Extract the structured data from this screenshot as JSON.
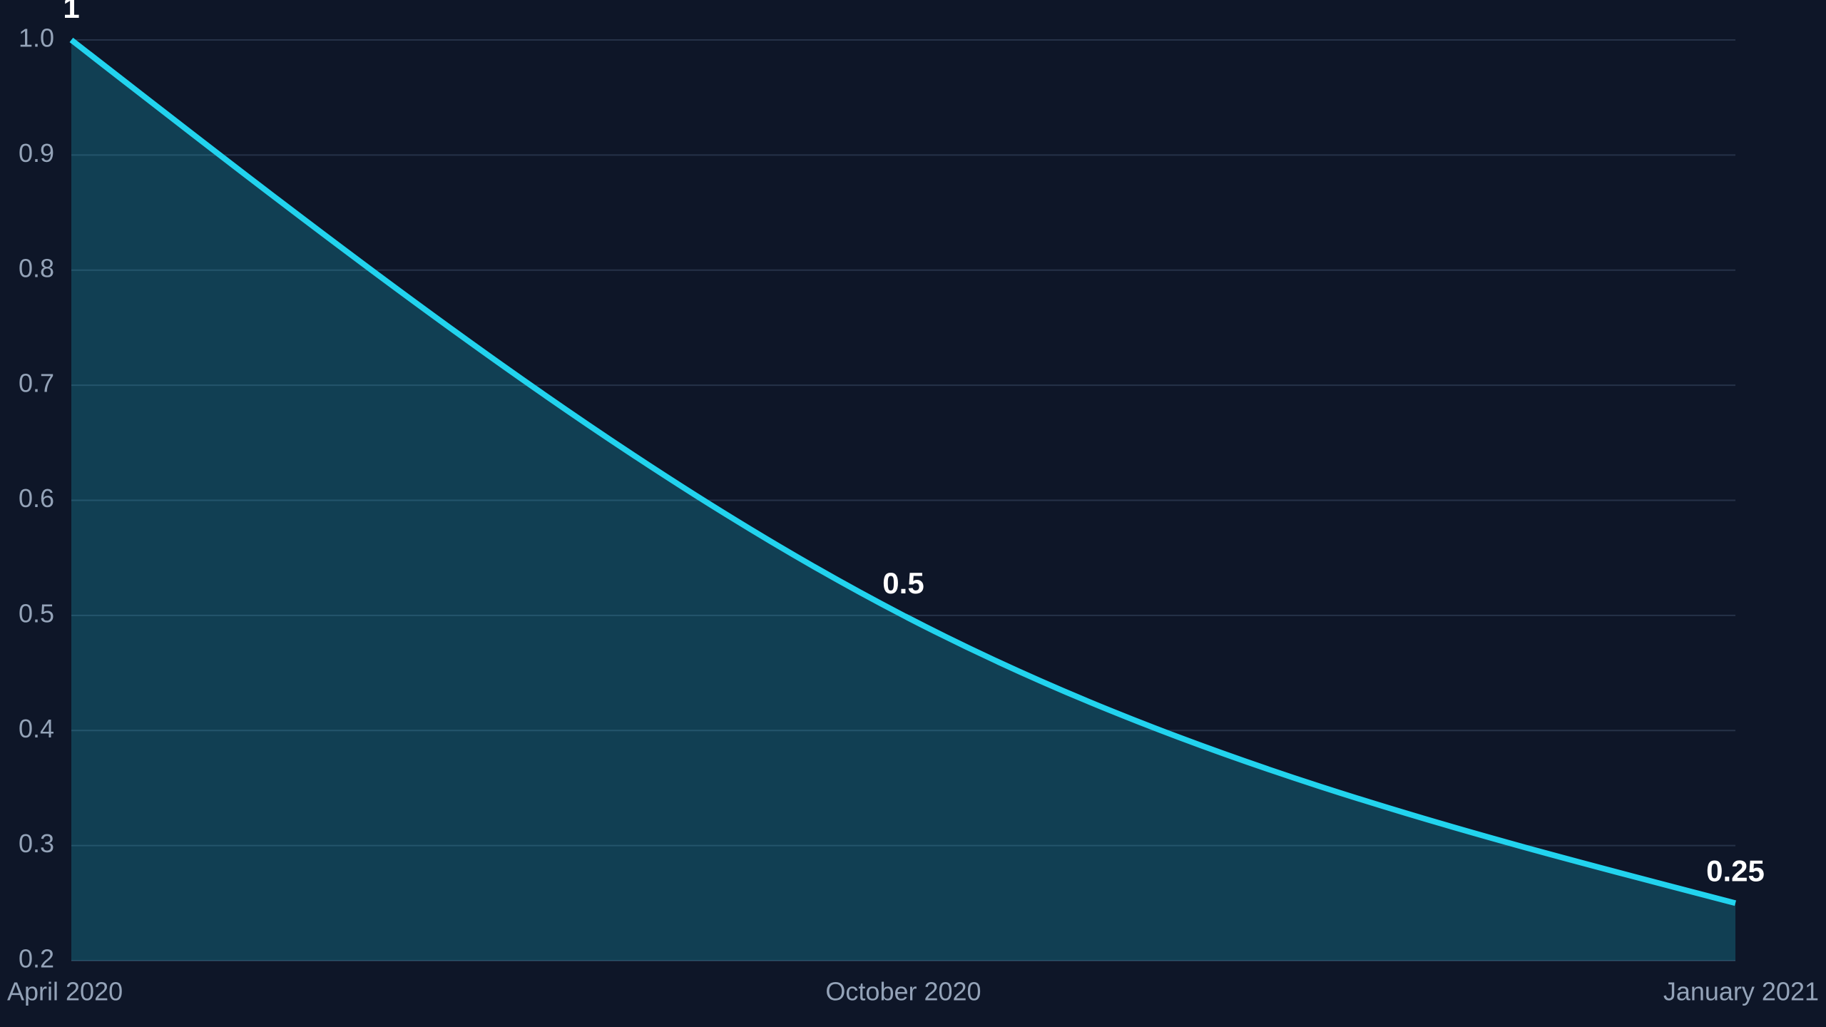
{
  "chart_data": {
    "type": "area",
    "categories": [
      "April 2020",
      "October 2020",
      "January 2021"
    ],
    "series": [
      {
        "color": "#22d3ee",
        "values": [
          1,
          0.5,
          0.25
        ]
      }
    ],
    "ylim": [
      0.2,
      1.0
    ],
    "yticks": [
      0.2,
      0.3,
      0.4,
      0.5,
      0.6,
      0.7,
      0.8,
      0.9,
      {
        "value": 1.0,
        "label": "1.0"
      }
    ],
    "grid": true
  }
}
